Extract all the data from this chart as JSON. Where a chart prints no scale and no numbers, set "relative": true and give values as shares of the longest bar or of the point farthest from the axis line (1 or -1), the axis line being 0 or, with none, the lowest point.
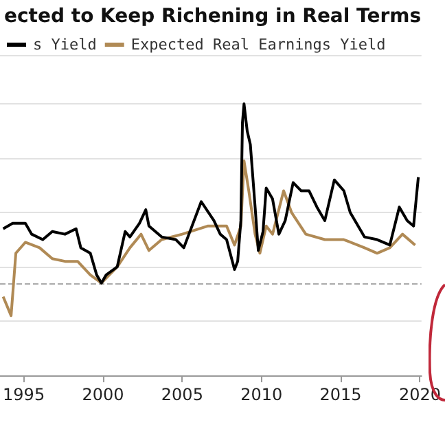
{
  "chart_data": {
    "type": "line",
    "title": "ected to Keep Richening in Real Terms",
    "relative": true,
    "legend": "top left",
    "grid": "y",
    "line_style": "solid",
    "marker": "none",
    "xlim": [
      1993.5,
      2020.1
    ],
    "xticks": [
      1995,
      2000,
      2005,
      2010,
      2015,
      2020
    ],
    "ref_lines": [
      {
        "axis": "y",
        "value": 0.34,
        "label": null,
        "color": "#aaaaaa",
        "line_style": "dashed"
      }
    ],
    "series": [
      {
        "name": "s Yield",
        "color": "#000000",
        "x": [
          1993.7,
          1994.3,
          1995.1,
          1995.5,
          1996.2,
          1996.8,
          1997.6,
          1998.3,
          1998.6,
          1999.2,
          1999.6,
          1999.9,
          2000.2,
          2000.9,
          2001.4,
          2001.7,
          2002.3,
          2002.7,
          2002.9,
          2003.7,
          2004.6,
          2005.1,
          2006.2,
          2007.0,
          2007.4,
          2007.8,
          2008.3,
          2008.5,
          2008.7,
          2008.8,
          2008.9,
          2009.1,
          2009.3,
          2009.6,
          2009.8,
          2010.1,
          2010.3,
          2010.7,
          2011.1,
          2011.5,
          2012.0,
          2012.5,
          2013.0,
          2013.5,
          2014.0,
          2014.6,
          2015.2,
          2015.6,
          2016.5,
          2017.3,
          2018.1,
          2018.7,
          2019.2,
          2019.6,
          2019.9
        ],
        "values": [
          0.54,
          0.56,
          0.56,
          0.52,
          0.5,
          0.53,
          0.52,
          0.54,
          0.47,
          0.45,
          0.37,
          0.34,
          0.37,
          0.4,
          0.53,
          0.51,
          0.56,
          0.61,
          0.55,
          0.51,
          0.5,
          0.47,
          0.64,
          0.57,
          0.52,
          0.5,
          0.39,
          0.42,
          0.57,
          0.93,
          1,
          0.9,
          0.85,
          0.62,
          0.46,
          0.53,
          0.69,
          0.65,
          0.52,
          0.57,
          0.71,
          0.68,
          0.68,
          0.62,
          0.57,
          0.72,
          0.68,
          0.6,
          0.51,
          0.5,
          0.48,
          0.62,
          0.57,
          0.55,
          0.73
        ]
      },
      {
        "name": "Expected Real Earnings Yield",
        "color": "#b08a55",
        "x": [
          1993.7,
          1994.2,
          1994.5,
          1995.1,
          1996.0,
          1996.8,
          1997.6,
          1998.4,
          1999.2,
          1999.9,
          2000.9,
          2001.7,
          2002.4,
          2002.9,
          2003.7,
          2005.0,
          2006.6,
          2007.8,
          2008.3,
          2008.7,
          2008.9,
          2009.2,
          2009.6,
          2009.9,
          2010.3,
          2010.7,
          2011.4,
          2011.9,
          2012.8,
          2014.0,
          2015.2,
          2016.5,
          2017.3,
          2018.1,
          2018.9,
          2019.7
        ],
        "values": [
          0.29,
          0.22,
          0.45,
          0.49,
          0.47,
          0.43,
          0.42,
          0.42,
          0.37,
          0.34,
          0.4,
          0.47,
          0.52,
          0.46,
          0.5,
          0.52,
          0.55,
          0.55,
          0.48,
          0.55,
          0.79,
          0.68,
          0.52,
          0.45,
          0.55,
          0.52,
          0.68,
          0.6,
          0.52,
          0.5,
          0.5,
          0.47,
          0.45,
          0.47,
          0.52,
          0.48
        ]
      }
    ]
  }
}
